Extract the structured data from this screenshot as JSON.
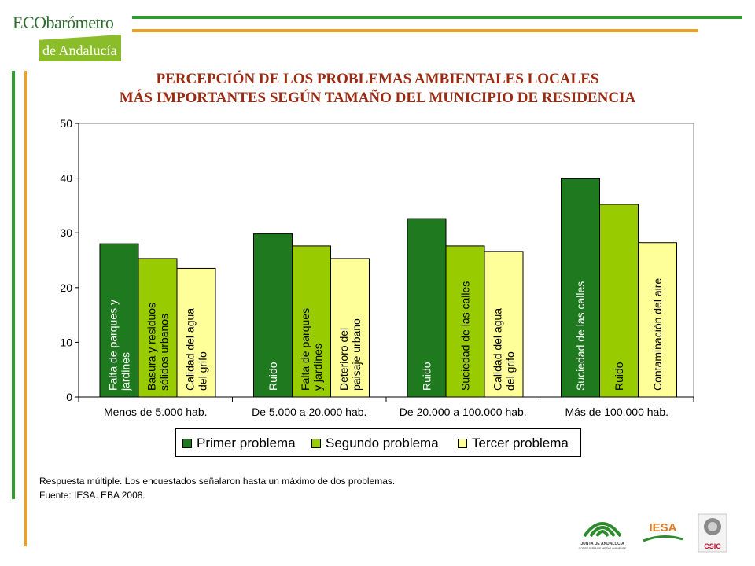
{
  "header": {
    "logo_line1": "ECObarómetro",
    "logo_line2": "de Andalucía"
  },
  "title": {
    "line1": "PERCEPCIÓN DE LOS PROBLEMAS AMBIENTALES LOCALES",
    "line2": "MÁS IMPORTANTES SEGÚN TAMAÑO DEL MUNICIPIO DE RESIDENCIA"
  },
  "chart_data": {
    "type": "bar",
    "categories": [
      "Menos de 5.000 hab.",
      "De 5.000 a 20.000 hab.",
      "De 20.000 a 100.000 hab.",
      "Más de 100.000 hab."
    ],
    "series": [
      {
        "name": "Primer problema",
        "color": "#1f7a1f",
        "values": [
          28.0,
          29.8,
          32.6,
          39.9
        ],
        "bar_labels": [
          [
            "Falta de parques y",
            "jardines"
          ],
          [
            "Ruido"
          ],
          [
            "Ruido"
          ],
          [
            "Suciedad de las calles"
          ]
        ]
      },
      {
        "name": "Segundo problema",
        "color": "#99cc00",
        "values": [
          25.3,
          27.6,
          27.6,
          35.2
        ],
        "bar_labels": [
          [
            "Basura y residuos",
            "sólidos urbanos"
          ],
          [
            "Falta de parques",
            "y jardines"
          ],
          [
            "Suciedad de las calles"
          ],
          [
            "Ruido"
          ]
        ]
      },
      {
        "name": "Tercer problema",
        "color": "#ffff99",
        "values": [
          23.5,
          25.3,
          26.6,
          28.2
        ],
        "bar_labels": [
          [
            "Calidad del agua",
            "del grifo"
          ],
          [
            "Deterioro del",
            "paisaje urbano"
          ],
          [
            "Calidad del agua",
            "del grifo"
          ],
          [
            "Contaminación del aire"
          ]
        ]
      }
    ],
    "ylim": [
      0,
      50
    ],
    "yticks": [
      0,
      10,
      20,
      30,
      40,
      50
    ],
    "xlabel": "",
    "ylabel": "",
    "legend_position": "bottom",
    "grid": false
  },
  "notes": {
    "line1": "Respuesta múltiple. Los encuestados señalaron hasta un máximo de dos  problemas.",
    "line2": "Fuente: IESA. EBA 2008."
  },
  "footer_logos": {
    "junta_line1": "JUNTA DE ANDALUCIA",
    "junta_line2": "CONSEJERÍA DE MEDIO AMBIENTE",
    "iesa": "IESA",
    "csic": "CSIC"
  },
  "colors": {
    "green_line": "#2e9e2e",
    "orange_line": "#f0a020",
    "title": "#9b2a12"
  }
}
